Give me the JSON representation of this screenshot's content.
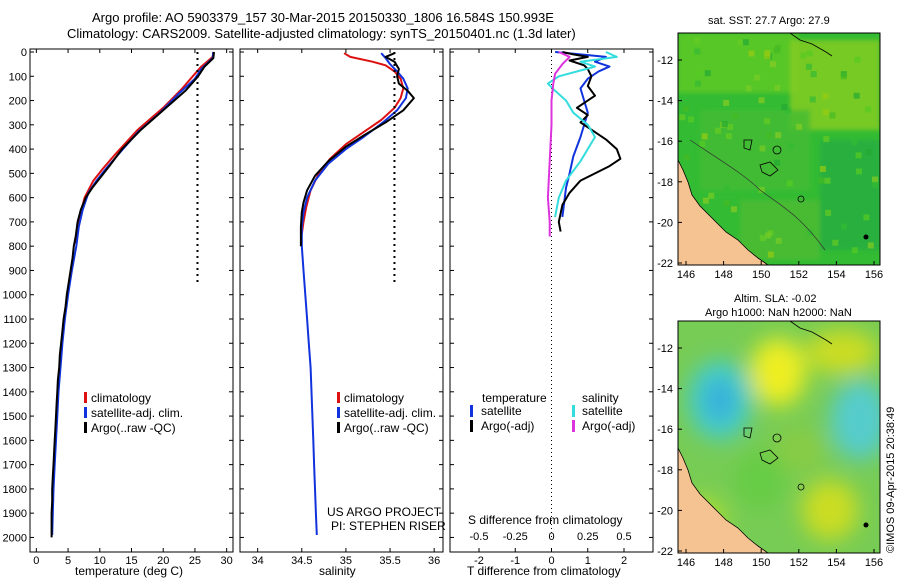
{
  "header": {
    "line1": "Argo profile: AO 5903379_157 30-Mar-2015 20150330_1806 16.584S 150.993E",
    "line2": "Climatology: CARS2009. Satellite-adjusted climatology: synTS_20150401.nc (1.3d later)"
  },
  "colors": {
    "climatology": "#dd1111",
    "satellite": "#1133dd",
    "argo": "#000000",
    "t_satellite": "#1133dd",
    "s_satellite": "#33dddd",
    "s_argo": "#dd33dd",
    "land": "#f5c291",
    "sea_green": "#33bb33"
  },
  "credits": {
    "project": "US ARGO PROJECT",
    "pi": "PI: STEPHEN RISER",
    "imos": "©IMOS 09-Apr-2015 20:38:49"
  },
  "chart_data": [
    {
      "type": "line",
      "id": "temperature_profile",
      "xlabel": "temperature (deg C)",
      "ylabel": "",
      "xlim": [
        -1,
        31
      ],
      "ylim": [
        2060,
        0
      ],
      "xticks": [
        0,
        5,
        10,
        15,
        20,
        25,
        30
      ],
      "yticks": [
        0,
        100,
        200,
        300,
        400,
        500,
        600,
        700,
        800,
        900,
        1000,
        1100,
        1200,
        1300,
        1400,
        1500,
        1600,
        1700,
        1800,
        1900,
        2000
      ],
      "legend": [
        "climatology",
        "satellite-adj. clim.",
        "Argo(..raw -QC)"
      ],
      "series": [
        {
          "name": "climatology",
          "color": "#dd1111",
          "points": [
            [
              27.9,
              0
            ],
            [
              27.8,
              20
            ],
            [
              26,
              60
            ],
            [
              25,
              90
            ],
            [
              23,
              150
            ],
            [
              20,
              230
            ],
            [
              16,
              320
            ],
            [
              12.5,
              420
            ],
            [
              10.5,
              480
            ],
            [
              9,
              530
            ],
            [
              7.6,
              600
            ],
            [
              6.8,
              680
            ],
            [
              6.3,
              790
            ]
          ]
        },
        {
          "name": "satellite-adj. clim.",
          "color": "#1133dd",
          "points": [
            [
              27.9,
              0
            ],
            [
              27.8,
              25
            ],
            [
              26,
              70
            ],
            [
              25,
              110
            ],
            [
              22.5,
              170
            ],
            [
              19.5,
              250
            ],
            [
              16,
              330
            ],
            [
              13,
              420
            ],
            [
              11,
              480
            ],
            [
              9.5,
              530
            ],
            [
              8.2,
              580
            ],
            [
              7.3,
              650
            ],
            [
              6.7,
              720
            ],
            [
              6.3,
              800
            ],
            [
              5.6,
              900
            ],
            [
              5.0,
              1000
            ],
            [
              4.5,
              1100
            ],
            [
              4.1,
              1200
            ],
            [
              3.8,
              1300
            ],
            [
              3.5,
              1400
            ],
            [
              3.3,
              1500
            ],
            [
              3.1,
              1600
            ],
            [
              2.9,
              1700
            ],
            [
              2.7,
              1800
            ],
            [
              2.6,
              1900
            ],
            [
              2.5,
              1990
            ]
          ]
        },
        {
          "name": "Argo(..raw -QC)",
          "color": "#000000",
          "points": [
            [
              28,
              0
            ],
            [
              27.9,
              25
            ],
            [
              26.5,
              60
            ],
            [
              25.5,
              100
            ],
            [
              23.5,
              160
            ],
            [
              20,
              240
            ],
            [
              16.5,
              320
            ],
            [
              13.5,
              400
            ],
            [
              11.5,
              470
            ],
            [
              10,
              520
            ],
            [
              8.8,
              560
            ],
            [
              7.8,
              600
            ],
            [
              7,
              650
            ],
            [
              6.5,
              700
            ],
            [
              6.2,
              760
            ],
            [
              5.9,
              800
            ],
            [
              5.7,
              850
            ],
            [
              5.4,
              900
            ],
            [
              5.1,
              950
            ],
            [
              4.8,
              1000
            ],
            [
              4.6,
              1050
            ],
            [
              4.3,
              1100
            ],
            [
              4.1,
              1150
            ],
            [
              3.9,
              1200
            ],
            [
              3.7,
              1250
            ],
            [
              3.6,
              1300
            ],
            [
              3.4,
              1350
            ],
            [
              3.3,
              1400
            ],
            [
              3.2,
              1450
            ],
            [
              3.1,
              1500
            ],
            [
              3.0,
              1550
            ],
            [
              2.9,
              1600
            ],
            [
              2.8,
              1650
            ],
            [
              2.7,
              1700
            ],
            [
              2.6,
              1750
            ],
            [
              2.5,
              1800
            ],
            [
              2.5,
              1850
            ],
            [
              2.4,
              1900
            ],
            [
              2.4,
              1950
            ],
            [
              2.4,
              2000
            ]
          ]
        }
      ],
      "reference_dotted": {
        "x": 25.4,
        "y_from": 0,
        "y_to": 960
      }
    },
    {
      "type": "line",
      "id": "salinity_profile",
      "xlabel": "salinity",
      "xlim": [
        33.8,
        36.1
      ],
      "ylim": [
        2060,
        0
      ],
      "xticks": [
        34,
        34.5,
        35,
        35.5,
        36
      ],
      "legend": [
        "climatology",
        "satellite-adj. clim.",
        "Argo(..raw -QC)"
      ],
      "series": [
        {
          "name": "climatology",
          "color": "#dd1111",
          "points": [
            [
              34.98,
              5
            ],
            [
              35.05,
              20
            ],
            [
              35.3,
              40
            ],
            [
              35.45,
              55
            ],
            [
              35.55,
              80
            ],
            [
              35.62,
              110
            ],
            [
              35.65,
              150
            ],
            [
              35.62,
              190
            ],
            [
              35.55,
              230
            ],
            [
              35.4,
              280
            ],
            [
              35.2,
              330
            ],
            [
              35.0,
              380
            ],
            [
              34.82,
              440
            ],
            [
              34.68,
              510
            ],
            [
              34.6,
              570
            ],
            [
              34.55,
              640
            ],
            [
              34.52,
              700
            ],
            [
              34.5,
              750
            ]
          ]
        },
        {
          "name": "satellite-adj. clim.",
          "color": "#1133dd",
          "points": [
            [
              35.4,
              5
            ],
            [
              35.45,
              25
            ],
            [
              35.5,
              50
            ],
            [
              35.58,
              80
            ],
            [
              35.65,
              110
            ],
            [
              35.7,
              150
            ],
            [
              35.68,
              190
            ],
            [
              35.58,
              240
            ],
            [
              35.42,
              290
            ],
            [
              35.2,
              350
            ],
            [
              35.0,
              400
            ],
            [
              34.8,
              460
            ],
            [
              34.65,
              530
            ],
            [
              34.56,
              600
            ],
            [
              34.52,
              660
            ],
            [
              34.5,
              720
            ],
            [
              34.5,
              800
            ],
            [
              34.52,
              900
            ],
            [
              34.54,
              1000
            ],
            [
              34.56,
              1100
            ],
            [
              34.58,
              1200
            ],
            [
              34.6,
              1300
            ],
            [
              34.61,
              1400
            ],
            [
              34.62,
              1500
            ],
            [
              34.63,
              1600
            ],
            [
              34.64,
              1700
            ],
            [
              34.65,
              1800
            ],
            [
              34.66,
              1900
            ],
            [
              34.67,
              1990
            ]
          ]
        },
        {
          "name": "Argo(..raw -QC)",
          "color": "#000000",
          "points": [
            [
              35.55,
              5
            ],
            [
              35.45,
              20
            ],
            [
              35.55,
              40
            ],
            [
              35.6,
              70
            ],
            [
              35.58,
              100
            ],
            [
              35.6,
              130
            ],
            [
              35.7,
              160
            ],
            [
              35.77,
              190
            ],
            [
              35.65,
              240
            ],
            [
              35.45,
              290
            ],
            [
              35.22,
              340
            ],
            [
              35.0,
              390
            ],
            [
              34.8,
              450
            ],
            [
              34.65,
              510
            ],
            [
              34.56,
              570
            ],
            [
              34.52,
              620
            ],
            [
              34.5,
              660
            ],
            [
              34.49,
              720
            ],
            [
              34.49,
              800
            ]
          ]
        }
      ],
      "reference_dotted": {
        "x": 35.55,
        "y_from": 0,
        "y_to": 960
      }
    },
    {
      "type": "line",
      "id": "difference_profile",
      "xlabel": "T difference from climatology",
      "x2label": "S difference from climatology",
      "xlim": [
        -2.8,
        2.8
      ],
      "ylim": [
        2060,
        0
      ],
      "xticks": [
        -2,
        -1,
        0,
        1,
        2
      ],
      "x2ticks": [
        "-0.5",
        "-0.25",
        "0",
        "0.25",
        "0.5"
      ],
      "legend_headers": [
        "temperature",
        "salinity"
      ],
      "legend": [
        "satellite",
        "Argo(-adj)",
        "satellite",
        "Argo(-adj)"
      ],
      "series": [
        {
          "name": "satellite",
          "group": "temperature",
          "color": "#1133dd",
          "points": [
            [
              0.1,
              0
            ],
            [
              0.8,
              10
            ],
            [
              1.5,
              20
            ],
            [
              1.2,
              40
            ],
            [
              1.6,
              60
            ],
            [
              1.3,
              80
            ],
            [
              1.0,
              110
            ],
            [
              0.8,
              150
            ],
            [
              0.9,
              200
            ],
            [
              1.0,
              250
            ],
            [
              0.8,
              350
            ],
            [
              0.6,
              430
            ],
            [
              0.5,
              500
            ],
            [
              0.4,
              560
            ],
            [
              0.35,
              620
            ],
            [
              0.3,
              680
            ]
          ]
        },
        {
          "name": "Argo(-adj)",
          "group": "temperature",
          "color": "#000000",
          "points": [
            [
              0.3,
              0
            ],
            [
              0.6,
              10
            ],
            [
              1.0,
              20
            ],
            [
              0.5,
              35
            ],
            [
              0.9,
              55
            ],
            [
              1.0,
              70
            ],
            [
              1.1,
              100
            ],
            [
              1.0,
              140
            ],
            [
              1.2,
              180
            ],
            [
              0.7,
              230
            ],
            [
              1.0,
              260
            ],
            [
              0.8,
              290
            ],
            [
              1.1,
              320
            ],
            [
              1.5,
              360
            ],
            [
              1.8,
              400
            ],
            [
              1.9,
              440
            ],
            [
              1.6,
              470
            ],
            [
              1.2,
              500
            ],
            [
              0.8,
              530
            ],
            [
              0.5,
              580
            ],
            [
              0.3,
              630
            ],
            [
              0.2,
              700
            ],
            [
              0.25,
              740
            ]
          ]
        },
        {
          "name": "satellite",
          "group": "salinity",
          "color": "#33dddd",
          "points": [
            [
              1.5,
              0
            ],
            [
              1.8,
              20
            ],
            [
              0.8,
              40
            ],
            [
              1.2,
              60
            ],
            [
              0.2,
              100
            ],
            [
              -0.1,
              130
            ],
            [
              0.1,
              160
            ],
            [
              0.4,
              200
            ],
            [
              0.6,
              250
            ],
            [
              1.0,
              300
            ],
            [
              1.2,
              350
            ],
            [
              0.8,
              450
            ],
            [
              0.4,
              530
            ],
            [
              0.2,
              600
            ],
            [
              0.1,
              680
            ]
          ]
        },
        {
          "name": "Argo(-adj)",
          "group": "salinity",
          "color": "#dd33dd",
          "points": [
            [
              0.2,
              0
            ],
            [
              0.5,
              20
            ],
            [
              0.3,
              50
            ],
            [
              0.1,
              90
            ],
            [
              0.05,
              130
            ],
            [
              0.0,
              200
            ],
            [
              0.0,
              300
            ],
            [
              -0.05,
              450
            ],
            [
              -0.1,
              600
            ],
            [
              -0.05,
              700
            ],
            [
              -0.05,
              760
            ]
          ]
        }
      ],
      "zero_dotted": {
        "x": 0
      }
    }
  ],
  "maps": {
    "xticks": [
      "146",
      "148",
      "150",
      "152",
      "154",
      "156"
    ],
    "yticks": [
      "-12",
      "-14",
      "-16",
      "-18",
      "-20",
      "-22"
    ],
    "sst": {
      "title": "sat. SST: 27.7 Argo: 27.9"
    },
    "sla": {
      "title_line1": "Altim. SLA: -0.02",
      "title_line2": "Argo h1000: NaN h2000: NaN"
    }
  }
}
